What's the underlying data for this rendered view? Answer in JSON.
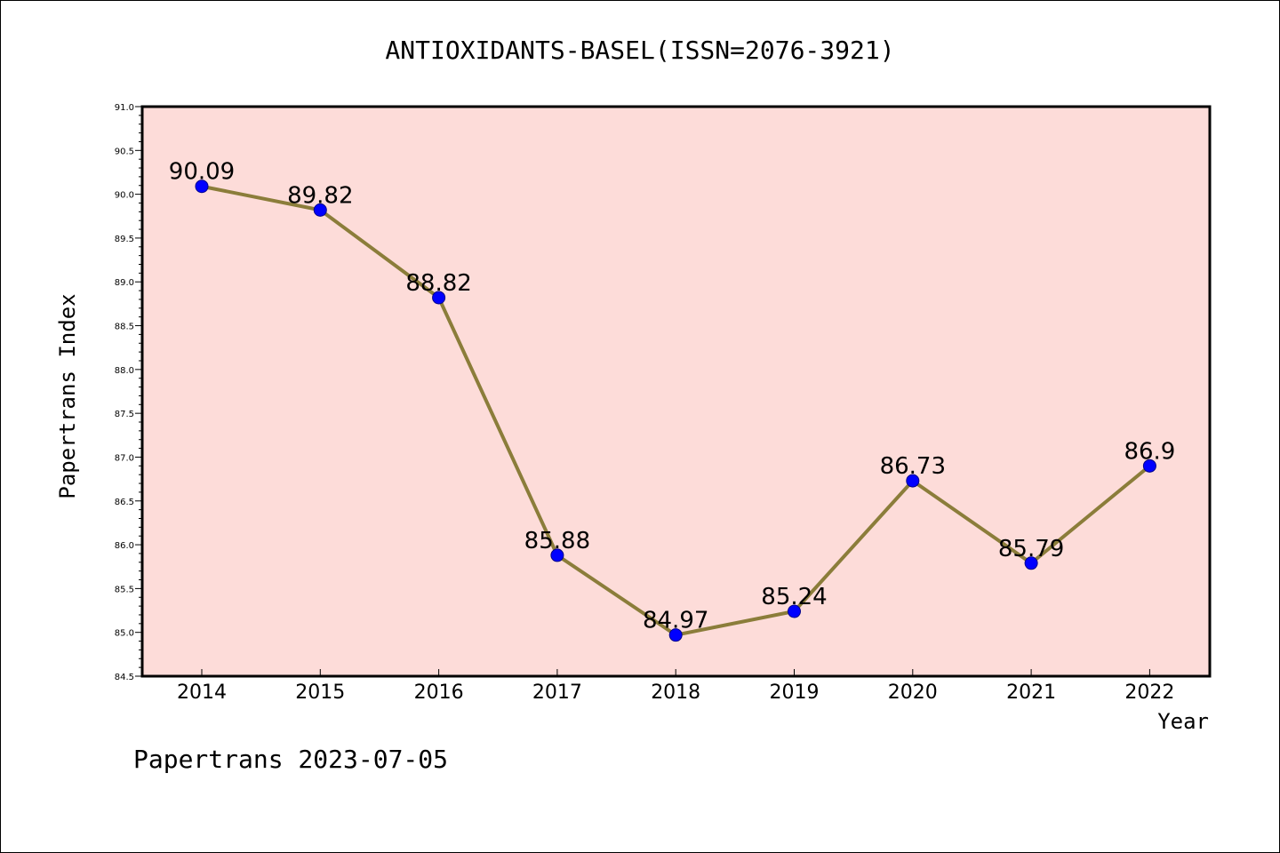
{
  "chart_data": {
    "type": "line",
    "title": "ANTIOXIDANTS-BASEL(ISSN=2076-3921)",
    "xlabel": "Year",
    "ylabel": "Papertrans Index",
    "categories": [
      "2014",
      "2015",
      "2016",
      "2017",
      "2018",
      "2019",
      "2020",
      "2021",
      "2022"
    ],
    "series": [
      {
        "values": [
          90.09,
          89.82,
          88.82,
          85.88,
          84.97,
          85.24,
          86.73,
          85.79,
          86.9
        ],
        "labels": [
          "90.09",
          "89.82",
          "88.82",
          "85.88",
          "84.97",
          "85.24",
          "86.73",
          "85.79",
          "86.9"
        ],
        "line_color": "#8b7d3a",
        "marker_color": "#0000ff"
      }
    ],
    "ylim": [
      84.5,
      91.0
    ],
    "yticks": [
      "84.5",
      "85.0",
      "85.5",
      "86.0",
      "86.5",
      "87.0",
      "87.5",
      "88.0",
      "88.5",
      "89.0",
      "89.5",
      "90.0",
      "90.5",
      "91.0"
    ],
    "grid": false,
    "plot_background": "#fddcd9"
  },
  "footer": "Papertrans 2023-07-05"
}
